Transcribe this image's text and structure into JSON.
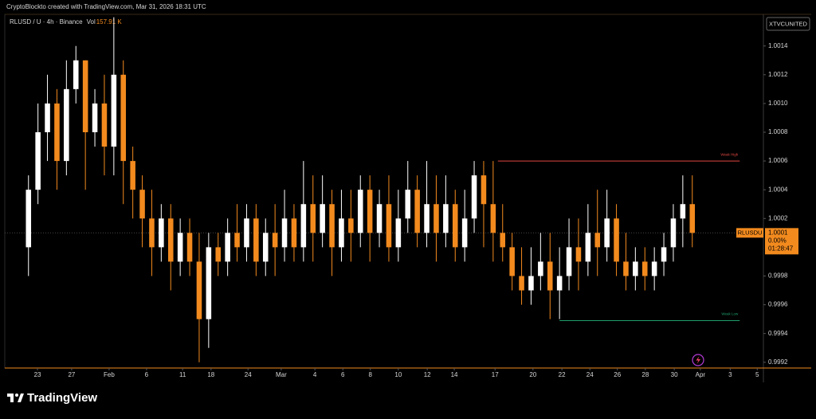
{
  "chart_data": {
    "type": "candlestick",
    "title": "CryptoBlockto created with TradingView.com, Mar 31, 2026 18:31 UTC",
    "legend_title": "RLUSD / U · 4h · Binance",
    "volume_label": "Vol",
    "volume": "157.91 K",
    "exchange_badge": "XTVCUNITED",
    "brand": "TradingView",
    "up_color": "#ffffff",
    "down_color": "#f28a1e",
    "ylim": [
      0.99916,
      1.00162
    ],
    "yticks": [
      1.0014,
      1.0012,
      {
        "value": 1.001,
        "label": "1.0010"
      },
      1.0008,
      1.0006,
      1.0004,
      1.0002,
      0.9998,
      0.9996,
      0.9994,
      0.9992
    ],
    "xlim": [
      0,
      160
    ],
    "xticks": [
      {
        "value": 6.9,
        "label": "23"
      },
      {
        "value": 14.1,
        "label": "27"
      },
      {
        "value": 22.0,
        "label": "Feb"
      },
      {
        "value": 29.9,
        "label": "6"
      },
      {
        "value": 37.5,
        "label": "11"
      },
      {
        "value": 43.5,
        "label": "18"
      },
      {
        "value": 51.3,
        "label": "24"
      },
      {
        "value": 58.3,
        "label": "Mar"
      },
      {
        "value": 65.4,
        "label": "4"
      },
      {
        "value": 71.3,
        "label": "6"
      },
      {
        "value": 77.1,
        "label": "8"
      },
      {
        "value": 83.0,
        "label": "10"
      },
      {
        "value": 89.1,
        "label": "12"
      },
      {
        "value": 94.8,
        "label": "14"
      },
      {
        "value": 103.4,
        "label": "17"
      },
      {
        "value": 111.4,
        "label": "20"
      },
      {
        "value": 117.5,
        "label": "22"
      },
      {
        "value": 123.4,
        "label": "24"
      },
      {
        "value": 129.2,
        "label": "26"
      },
      {
        "value": 135.1,
        "label": "28"
      },
      {
        "value": 141.2,
        "label": "30"
      },
      {
        "value": 146.7,
        "label": "Apr"
      },
      {
        "value": 153.0,
        "label": "3"
      },
      {
        "value": 158.7,
        "label": "5"
      }
    ],
    "x": [
      5,
      7,
      9,
      11,
      13,
      15,
      17,
      19,
      21,
      23,
      25,
      27,
      29,
      31,
      33,
      35,
      37,
      39,
      41,
      43,
      45,
      47,
      49,
      51,
      53,
      55,
      57,
      59,
      61,
      63,
      65,
      67,
      69,
      71,
      73,
      75,
      77,
      79,
      81,
      83,
      85,
      87,
      89,
      91,
      93,
      95,
      97,
      99,
      101,
      103,
      105,
      107,
      109,
      111,
      113,
      115,
      117,
      119,
      121,
      123,
      125,
      127,
      129,
      131,
      133,
      135,
      137,
      139,
      141,
      143,
      145
    ],
    "open": [
      1,
      1.0004,
      1.0008,
      1.001,
      1.0006,
      1.0011,
      1.0013,
      1.0008,
      1.001,
      1.0007,
      1.0012,
      1.0006,
      1.0004,
      1.0002,
      1,
      1.0002,
      0.9999,
      1.0001,
      0.9999,
      0.9995,
      1,
      0.9999,
      1.0001,
      1,
      1.0002,
      0.9999,
      1.0001,
      1,
      1.0002,
      1,
      1.0003,
      1.0001,
      1.0003,
      1,
      1.0002,
      1.0001,
      1.0004,
      1.0001,
      1.0003,
      1,
      1.0002,
      1.0004,
      1.0001,
      1.0003,
      1.0001,
      1.0003,
      1,
      1.0002,
      1.0005,
      1.0003,
      1.0001,
      1,
      0.9998,
      0.9997,
      0.9998,
      0.9999,
      0.9997,
      0.9998,
      1,
      0.9999,
      1.0001,
      1,
      1.0002,
      0.9999,
      0.9998,
      0.9999,
      0.9998,
      0.9999,
      1,
      1.0002,
      1.0003
    ],
    "high": [
      1.0005,
      1.001,
      1.0012,
      1.0011,
      1.0013,
      1.0014,
      1.0013,
      1.0011,
      1.0012,
      1.0016,
      1.0013,
      1.0007,
      1.0005,
      1.0004,
      1.0003,
      1.0003,
      1.0002,
      1.0002,
      1.0001,
      1.0001,
      1.0001,
      1.0002,
      1.0003,
      1.0003,
      1.0003,
      1.0002,
      1.0003,
      1.0004,
      1.0003,
      1.0006,
      1.0005,
      1.0005,
      1.0004,
      1.0004,
      1.0004,
      1.0005,
      1.0005,
      1.0004,
      1.0005,
      1.0004,
      1.0006,
      1.0005,
      1.0006,
      1.0005,
      1.0005,
      1.0004,
      1.0004,
      1.0006,
      1.0006,
      1.0006,
      1.0003,
      1.0001,
      1,
      1,
      1.0001,
      1.0001,
      1,
      1.0002,
      1.0002,
      1.0003,
      1.0004,
      1.0004,
      1.0003,
      1.0001,
      1,
      1,
      1,
      1.0001,
      1.0003,
      1.0005,
      1.0005
    ],
    "low": [
      0.9998,
      1.0003,
      1.0006,
      1.0004,
      1.0005,
      1.001,
      1.0004,
      1.0007,
      1.0005,
      1.0005,
      1.0003,
      1.0002,
      1,
      0.9998,
      0.9999,
      0.9997,
      0.9998,
      0.9998,
      0.9992,
      0.9993,
      0.9998,
      0.9998,
      0.9999,
      0.9999,
      0.9998,
      0.9998,
      0.9998,
      0.9999,
      0.9999,
      0.9999,
      0.9999,
      1,
      0.9998,
      0.9999,
      0.9999,
      1,
      0.9999,
      1,
      0.9999,
      0.9999,
      1.0001,
      1,
      1,
      0.9999,
      1,
      0.9999,
      0.9999,
      1.0001,
      1,
      0.9999,
      0.9999,
      0.9997,
      0.9996,
      0.9996,
      0.9997,
      0.9995,
      0.9995,
      0.9997,
      0.9997,
      0.9998,
      0.9998,
      0.9999,
      0.9998,
      0.9997,
      0.9997,
      0.9997,
      0.9997,
      0.9998,
      0.9999,
      1,
      1
    ],
    "close": [
      1.0004,
      1.0008,
      1.001,
      1.0006,
      1.0011,
      1.0013,
      1.0008,
      1.001,
      1.0007,
      1.0012,
      1.0006,
      1.0004,
      1.0002,
      1,
      1.0002,
      0.9999,
      1.0001,
      0.9999,
      0.9995,
      1,
      0.9999,
      1.0001,
      1,
      1.0002,
      0.9999,
      1.0001,
      1,
      1.0002,
      1,
      1.0003,
      1.0001,
      1.0003,
      1,
      1.0002,
      1.0001,
      1.0004,
      1.0001,
      1.0003,
      1,
      1.0002,
      1.0004,
      1.0001,
      1.0003,
      1.0001,
      1.0003,
      1,
      1.0002,
      1.0005,
      1.0003,
      1.0001,
      1,
      0.9998,
      0.9997,
      0.9998,
      0.9999,
      0.9997,
      0.9998,
      1,
      0.9999,
      1.0001,
      1,
      1.0002,
      0.9999,
      0.9998,
      0.9999,
      0.9998,
      0.9999,
      1,
      1.0002,
      1.0003,
      1.0001
    ],
    "levels": [
      {
        "label": "Weak High",
        "value": 1.0006,
        "x_start": 104,
        "x_end": 155,
        "color": "#e0473f"
      },
      {
        "label": "Weak Low",
        "value": 0.99949,
        "x_start": 117,
        "x_end": 155,
        "color": "#1e9e6a"
      }
    ],
    "last_price": {
      "symbol": "RLUSDU",
      "value": 1.0001,
      "change": "0.00%",
      "countdown": "01:28:47",
      "color": "#f28a1e"
    }
  }
}
